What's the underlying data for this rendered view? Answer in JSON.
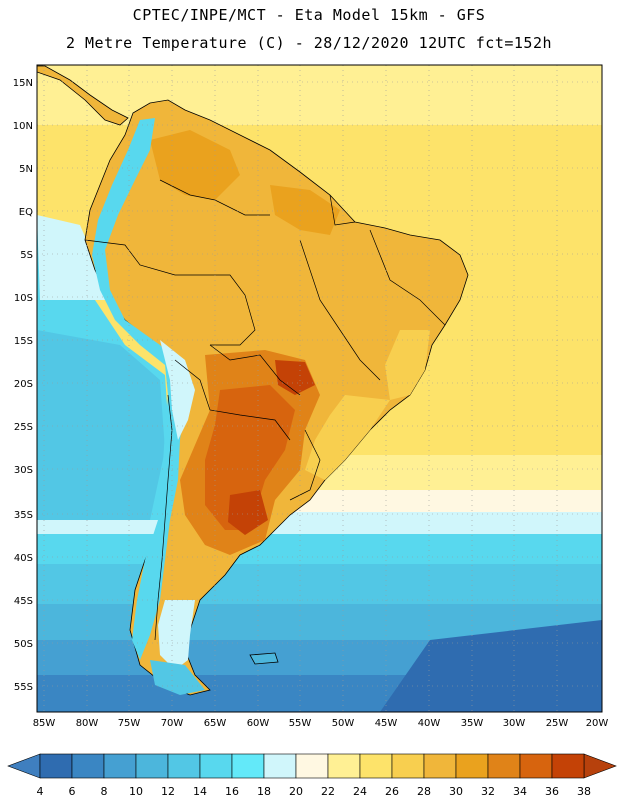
{
  "header": {
    "title_line1": "CPTEC/INPE/MCT  -  Eta Model 15km - GFS",
    "title_line2": "2 Metre Temperature (C) - 28/12/2020 12UTC fct=152h"
  },
  "map": {
    "lat_labels": [
      "15N",
      "10N",
      "5N",
      "EQ",
      "5S",
      "10S",
      "15S",
      "20S",
      "25S",
      "30S",
      "35S",
      "40S",
      "45S",
      "50S",
      "55S"
    ],
    "lon_labels": [
      "85W",
      "80W",
      "75W",
      "70W",
      "65W",
      "60W",
      "55W",
      "50W",
      "45W",
      "40W",
      "35W",
      "30W",
      "25W",
      "20W"
    ]
  },
  "colorbar": {
    "labels": [
      "4",
      "6",
      "8",
      "10",
      "12",
      "14",
      "16",
      "18",
      "20",
      "22",
      "24",
      "26",
      "28",
      "30",
      "32",
      "34",
      "36",
      "38"
    ],
    "colors": [
      "#2f6cb0",
      "#3a86c3",
      "#45a0d2",
      "#4cb6dc",
      "#52c7e5",
      "#58d8ee",
      "#63e9f9",
      "#d0f6fb",
      "#fff8e2",
      "#fff094",
      "#fde36a",
      "#f8cf4f",
      "#f0b63a",
      "#eaa21e",
      "#e08318",
      "#d7640e",
      "#c44206"
    ],
    "low_color": "#3f7fbf",
    "high_color": "#b7410c"
  }
}
